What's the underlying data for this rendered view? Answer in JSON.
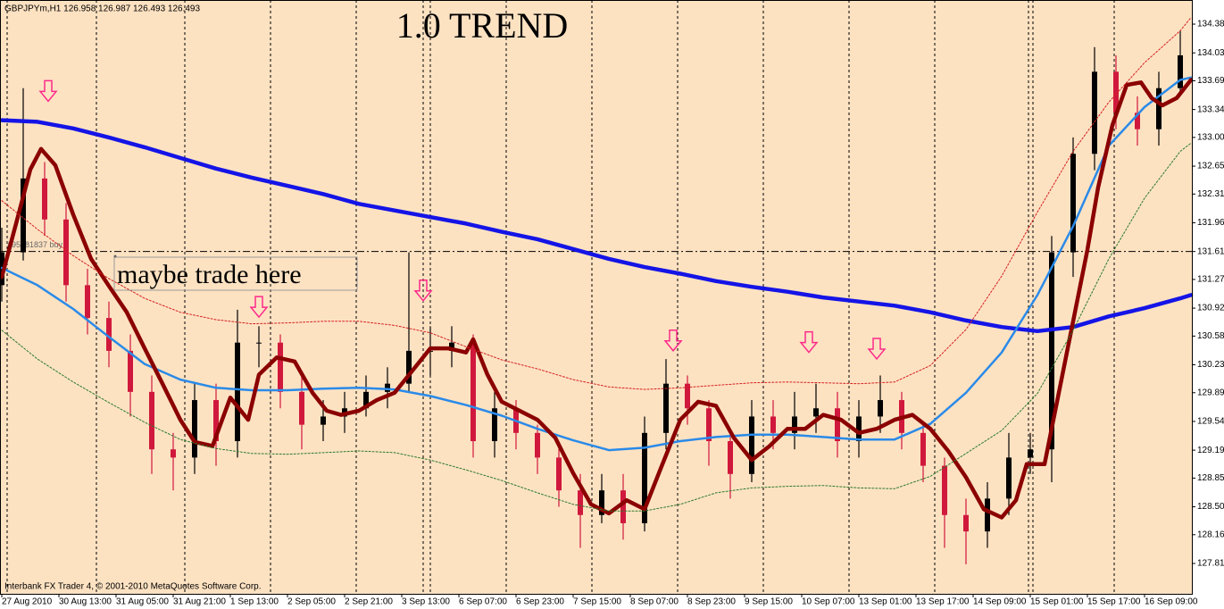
{
  "chart_data": {
    "type": "candlestick",
    "header": "GBPJPYm,H1  126.958 126.987 126.493 126.493",
    "title": "1.0 TREND",
    "annotation": "maybe trade here",
    "footer": "Interbank FX Trader 4, © 2001-2010 MetaQuotes Software Corp.",
    "background": "#fde2c2",
    "up_color": "#000000",
    "down_color": "#d0183c",
    "xlim": [
      -0.5,
      333.25
    ],
    "ylim": [
      127.44,
      134.674
    ],
    "xticks": [
      {
        "value": 0,
        "label": "27 Aug 2010"
      },
      {
        "value": 16,
        "label": "30 Aug 13:00"
      },
      {
        "value": 32,
        "label": "31 Aug 05:00"
      },
      {
        "value": 48,
        "label": "31 Aug 21:00"
      },
      {
        "value": 64,
        "label": "1 Sep 13:00"
      },
      {
        "value": 80,
        "label": "2 Sep 05:00"
      },
      {
        "value": 96,
        "label": "2 Sep 21:00"
      },
      {
        "value": 112,
        "label": "3 Sep 13:00"
      },
      {
        "value": 128,
        "label": "6 Sep 07:00"
      },
      {
        "value": 144,
        "label": "6 Sep 23:00"
      },
      {
        "value": 160,
        "label": "7 Sep 15:00"
      },
      {
        "value": 176,
        "label": "8 Sep 07:00"
      },
      {
        "value": 192,
        "label": "8 Sep 23:00"
      },
      {
        "value": 208,
        "label": "9 Sep 15:00"
      },
      {
        "value": 224,
        "label": "10 Sep 07:00"
      },
      {
        "value": 240,
        "label": "13 Sep 01:00"
      },
      {
        "value": 256,
        "label": "13 Sep 17:00"
      },
      {
        "value": 272,
        "label": "14 Sep 09:00"
      },
      {
        "value": 288,
        "label": "15 Sep 01:00"
      },
      {
        "value": 304,
        "label": "15 Sep 17:00"
      },
      {
        "value": 320,
        "label": "16 Sep 09:00"
      }
    ],
    "yticks": [
      {
        "value": 134.38,
        "label": "134.380"
      },
      {
        "value": 134.03,
        "label": "134.030"
      },
      {
        "value": 133.69,
        "label": "133.690"
      },
      {
        "value": 133.34,
        "label": "133.340"
      },
      {
        "value": 133.0,
        "label": "133.000"
      },
      {
        "value": 132.65,
        "label": "132.650"
      },
      {
        "value": 132.31,
        "label": "132.310"
      },
      {
        "value": 131.96,
        "label": "131.960"
      },
      {
        "value": 131.61,
        "label": "131.610"
      },
      {
        "value": 131.27,
        "label": "131.270"
      },
      {
        "value": 130.92,
        "label": "130.920"
      },
      {
        "value": 130.58,
        "label": "130.580"
      },
      {
        "value": 130.23,
        "label": "130.230"
      },
      {
        "value": 129.89,
        "label": "129.890"
      },
      {
        "value": 129.54,
        "label": "129.540"
      },
      {
        "value": 129.19,
        "label": "129.190"
      },
      {
        "value": 128.85,
        "label": "128.850"
      },
      {
        "value": 128.5,
        "label": "128.500"
      },
      {
        "value": 128.16,
        "label": "128.160"
      },
      {
        "value": 127.81,
        "label": "127.810"
      }
    ],
    "x": [
      0,
      6,
      12,
      18,
      24,
      30,
      36,
      42,
      48,
      54,
      60,
      66,
      72,
      78,
      84,
      90,
      96,
      102,
      108,
      114,
      120,
      126,
      132,
      138,
      144,
      150,
      156,
      162,
      168,
      174,
      180,
      186,
      192,
      198,
      204,
      210,
      216,
      222,
      228,
      234,
      240,
      246,
      252,
      258,
      264,
      270,
      276,
      282,
      288,
      294,
      300,
      306,
      312,
      318,
      324,
      330
    ],
    "open": [
      131.2,
      131.6,
      132.5,
      132.0,
      131.2,
      130.8,
      130.4,
      129.9,
      129.2,
      129.1,
      129.8,
      129.3,
      130.5,
      130.5,
      129.9,
      129.5,
      129.6,
      129.7,
      129.9,
      130.0,
      130.4,
      130.4,
      130.5,
      129.3,
      129.7,
      129.4,
      129.1,
      128.7,
      128.4,
      128.7,
      128.3,
      129.4,
      130.0,
      129.7,
      129.3,
      128.9,
      129.6,
      129.4,
      129.6,
      129.7,
      129.3,
      129.6,
      129.8,
      129.4,
      129.0,
      128.4,
      128.2,
      128.6,
      129.1,
      129.2,
      131.6,
      132.8,
      133.8,
      133.3,
      133.1,
      133.6
    ],
    "high": [
      131.9,
      133.6,
      132.7,
      132.2,
      131.4,
      131.0,
      130.6,
      130.1,
      129.4,
      130.0,
      130.0,
      130.9,
      130.7,
      130.6,
      130.1,
      129.8,
      129.9,
      130.1,
      130.2,
      131.6,
      130.7,
      130.7,
      130.6,
      129.9,
      129.8,
      129.5,
      129.3,
      128.9,
      128.9,
      128.9,
      129.6,
      130.3,
      130.1,
      129.8,
      129.4,
      129.8,
      129.8,
      129.9,
      130.0,
      129.9,
      129.8,
      130.1,
      129.9,
      129.5,
      129.1,
      128.6,
      128.8,
      129.4,
      129.4,
      131.8,
      133.0,
      134.1,
      134.0,
      133.5,
      133.8,
      134.3
    ],
    "low": [
      131.0,
      131.5,
      131.8,
      131.0,
      130.6,
      130.2,
      129.6,
      128.9,
      128.7,
      128.9,
      129.0,
      129.1,
      130.2,
      129.7,
      129.2,
      129.3,
      129.4,
      129.6,
      129.7,
      129.9,
      130.1,
      130.2,
      129.1,
      129.1,
      129.2,
      128.9,
      128.5,
      128.0,
      128.3,
      128.1,
      128.2,
      129.2,
      129.5,
      129.0,
      128.6,
      128.8,
      129.2,
      129.2,
      129.4,
      129.1,
      129.1,
      129.4,
      129.2,
      128.8,
      128.0,
      127.8,
      128.0,
      128.4,
      128.9,
      128.8,
      131.3,
      132.6,
      133.1,
      132.9,
      132.9,
      133.5
    ],
    "close": [
      131.6,
      132.5,
      132.0,
      131.2,
      130.8,
      130.4,
      129.9,
      129.2,
      129.1,
      129.8,
      129.3,
      130.5,
      130.5,
      129.9,
      129.5,
      129.6,
      129.7,
      129.9,
      130.0,
      130.4,
      130.4,
      130.5,
      129.3,
      129.7,
      129.4,
      129.1,
      128.7,
      128.4,
      128.7,
      128.3,
      129.4,
      130.0,
      129.7,
      129.3,
      128.9,
      129.6,
      129.4,
      129.6,
      129.7,
      129.3,
      129.6,
      129.8,
      129.4,
      129.0,
      128.4,
      128.2,
      128.6,
      129.1,
      129.2,
      131.6,
      132.8,
      133.8,
      133.3,
      133.1,
      133.6,
      134.0
    ],
    "lines": [
      {
        "color": "#1414e6",
        "style": "thick",
        "x": [
          0,
          10,
          20,
          30,
          40,
          50,
          60,
          70,
          80,
          90,
          100,
          110,
          120,
          130,
          140,
          150,
          160,
          170,
          180,
          190,
          200,
          210,
          220,
          230,
          240,
          250,
          260,
          270,
          280,
          290,
          300,
          310,
          320,
          330,
          333
        ],
        "values": [
          133.21,
          133.19,
          133.11,
          133.0,
          132.88,
          132.75,
          132.62,
          132.51,
          132.41,
          132.31,
          132.19,
          132.11,
          132.03,
          131.95,
          131.85,
          131.76,
          131.64,
          131.52,
          131.42,
          131.34,
          131.25,
          131.18,
          131.12,
          131.05,
          131.0,
          130.95,
          130.87,
          130.77,
          130.69,
          130.64,
          130.69,
          130.82,
          130.92,
          131.04,
          131.08
        ]
      },
      {
        "color": "#2a8ae8",
        "style": "medium",
        "x": [
          0,
          10,
          20,
          30,
          40,
          50,
          60,
          70,
          80,
          90,
          100,
          110,
          120,
          130,
          140,
          150,
          160,
          170,
          180,
          190,
          200,
          210,
          220,
          230,
          240,
          250,
          260,
          270,
          280,
          290,
          300,
          310,
          320,
          330,
          333
        ],
        "values": [
          131.41,
          131.2,
          130.91,
          130.57,
          130.24,
          130.05,
          129.95,
          129.92,
          129.92,
          129.94,
          129.95,
          129.93,
          129.85,
          129.74,
          129.61,
          129.45,
          129.31,
          129.19,
          129.22,
          129.3,
          129.35,
          129.38,
          129.38,
          129.35,
          129.32,
          129.32,
          129.51,
          129.89,
          130.38,
          131.08,
          131.92,
          132.9,
          133.37,
          133.7,
          133.73
        ]
      },
      {
        "color": "#8b0000",
        "style": "thick",
        "x": [
          0,
          4,
          8,
          11,
          15,
          20,
          25,
          30,
          35,
          40,
          45,
          50,
          54,
          59,
          64,
          69,
          72,
          77,
          82,
          87,
          91,
          95,
          100,
          105,
          110,
          115,
          120,
          125,
          130,
          132,
          136,
          140,
          145,
          150,
          155,
          160,
          165,
          170,
          175,
          180,
          185,
          190,
          195,
          200,
          205,
          210,
          215,
          220,
          225,
          230,
          235,
          240,
          245,
          250,
          255,
          260,
          265,
          270,
          275,
          280,
          284,
          287,
          292,
          296,
          300,
          304,
          307,
          311,
          315,
          319,
          322,
          325,
          329,
          333
        ],
        "values": [
          131.3,
          131.95,
          132.61,
          132.86,
          132.66,
          132.06,
          131.52,
          131.19,
          130.87,
          130.43,
          130.0,
          129.56,
          129.29,
          129.24,
          129.83,
          129.56,
          130.11,
          130.32,
          130.27,
          129.89,
          129.67,
          129.62,
          129.67,
          129.8,
          129.89,
          130.16,
          130.43,
          130.43,
          130.38,
          130.54,
          130.11,
          129.78,
          129.67,
          129.56,
          129.34,
          128.91,
          128.53,
          128.42,
          128.58,
          128.47,
          129.02,
          129.56,
          129.78,
          129.73,
          129.34,
          129.07,
          129.24,
          129.45,
          129.45,
          129.62,
          129.56,
          129.4,
          129.45,
          129.56,
          129.62,
          129.45,
          129.18,
          128.86,
          128.47,
          128.37,
          128.58,
          129.02,
          129.02,
          129.89,
          130.76,
          131.63,
          132.39,
          133.15,
          133.64,
          133.67,
          133.48,
          133.39,
          133.48,
          133.7
        ]
      },
      {
        "color": "#d42020",
        "style": "dotted",
        "x": [
          0,
          10,
          20,
          30,
          40,
          50,
          60,
          70,
          80,
          90,
          100,
          110,
          120,
          130,
          140,
          150,
          160,
          170,
          180,
          190,
          200,
          210,
          220,
          230,
          240,
          250,
          260,
          270,
          280,
          290,
          300,
          310,
          320,
          330,
          333
        ],
        "values": [
          132.23,
          131.88,
          131.56,
          131.28,
          131.04,
          130.87,
          130.78,
          130.73,
          130.74,
          130.76,
          130.76,
          130.71,
          130.62,
          130.45,
          130.29,
          130.18,
          130.05,
          129.96,
          129.93,
          129.95,
          129.98,
          130.01,
          130.02,
          130.01,
          130.0,
          130.02,
          130.22,
          130.66,
          131.31,
          132.09,
          132.83,
          133.43,
          133.91,
          134.3,
          134.46
        ]
      },
      {
        "color": "#2a7a2a",
        "style": "dotted",
        "x": [
          0,
          10,
          20,
          30,
          40,
          50,
          60,
          70,
          80,
          90,
          100,
          110,
          120,
          130,
          140,
          150,
          160,
          170,
          180,
          190,
          200,
          210,
          220,
          230,
          240,
          250,
          260,
          270,
          280,
          290,
          300,
          310,
          320,
          330,
          333
        ],
        "values": [
          130.65,
          130.3,
          130.02,
          129.77,
          129.53,
          129.32,
          129.21,
          129.15,
          129.14,
          129.16,
          129.18,
          129.16,
          129.07,
          128.95,
          128.82,
          128.67,
          128.53,
          128.45,
          128.45,
          128.53,
          128.67,
          128.73,
          128.75,
          128.76,
          128.73,
          128.72,
          128.87,
          129.15,
          129.43,
          129.88,
          130.65,
          131.52,
          132.26,
          132.83,
          132.93
        ]
      }
    ],
    "order_line": {
      "label": "#95281837 buy",
      "value": 131.61
    },
    "arrows": {
      "color": "#ff2a8a",
      "x": [
        13,
        72,
        118,
        188,
        226,
        245
      ],
      "y": [
        133.55,
        130.92,
        131.12,
        130.51,
        130.49,
        130.41
      ]
    }
  }
}
